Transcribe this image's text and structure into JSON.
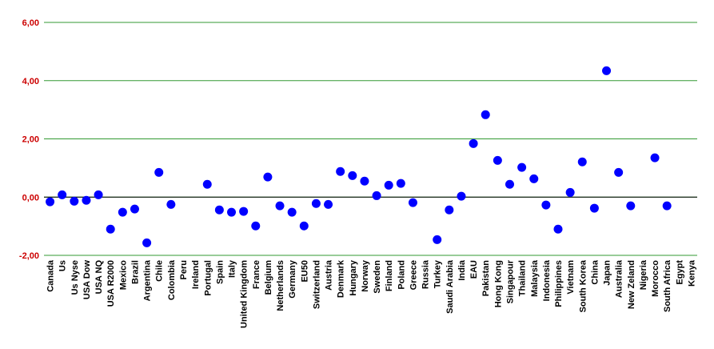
{
  "chart_data": {
    "type": "scatter",
    "categories": [
      "Canada",
      "Us",
      "Us Nyse",
      "USA Dow",
      "USA NQ",
      "USA R2000",
      "Mexico",
      "Brazil",
      "Argentina",
      "Chile",
      "Colombia",
      "Peru",
      "Ireland",
      "Portugal",
      "Spain",
      "Italy",
      "United Kingdom",
      "France",
      "Belgium",
      "Netherlands",
      "Germany",
      "EU50",
      "Switzerland",
      "Austria",
      "Denmark",
      "Hungary",
      "Norway",
      "Sweden",
      "Finland",
      "Poland",
      "Greece",
      "Russia",
      "Turkey",
      "Saudi Arabia",
      "India",
      "EAU",
      "Pakistan",
      "Hong Kong",
      "Singapour",
      "Thailand",
      "Malaysia",
      "Indonesia",
      "Philippines",
      "Vietnam",
      "South Korea",
      "China",
      "Japan",
      "Australia",
      "New Zeland",
      "Nigeria",
      "Morocco",
      "South Africa",
      "Egypt",
      "Kenya"
    ],
    "values": [
      -0.16,
      0.08,
      -0.14,
      -0.11,
      0.08,
      -1.1,
      -0.52,
      -0.41,
      -1.57,
      0.85,
      -0.25,
      null,
      null,
      0.44,
      -0.44,
      -0.52,
      -0.49,
      -0.99,
      0.69,
      -0.3,
      -0.52,
      -0.99,
      -0.22,
      -0.25,
      0.88,
      0.74,
      0.55,
      0.05,
      0.41,
      0.47,
      -0.19,
      null,
      -1.46,
      -0.44,
      0.03,
      1.84,
      2.83,
      1.26,
      0.44,
      1.02,
      0.63,
      -0.27,
      -1.1,
      0.16,
      1.21,
      -0.38,
      4.34,
      0.85,
      -0.3,
      null,
      1.35,
      -0.3,
      null,
      null
    ],
    "color": "#0000ff",
    "ylim": [
      -2,
      6
    ],
    "yticks": [
      {
        "value": -2,
        "label": "-2,00"
      },
      {
        "value": 0,
        "label": "0,00"
      },
      {
        "value": 2,
        "label": "2,00"
      },
      {
        "value": 4,
        "label": "4,00"
      },
      {
        "value": 6,
        "label": "6,00"
      }
    ],
    "grid": true,
    "grid_color": "#339933",
    "tick_label_color": "#cc0000"
  }
}
